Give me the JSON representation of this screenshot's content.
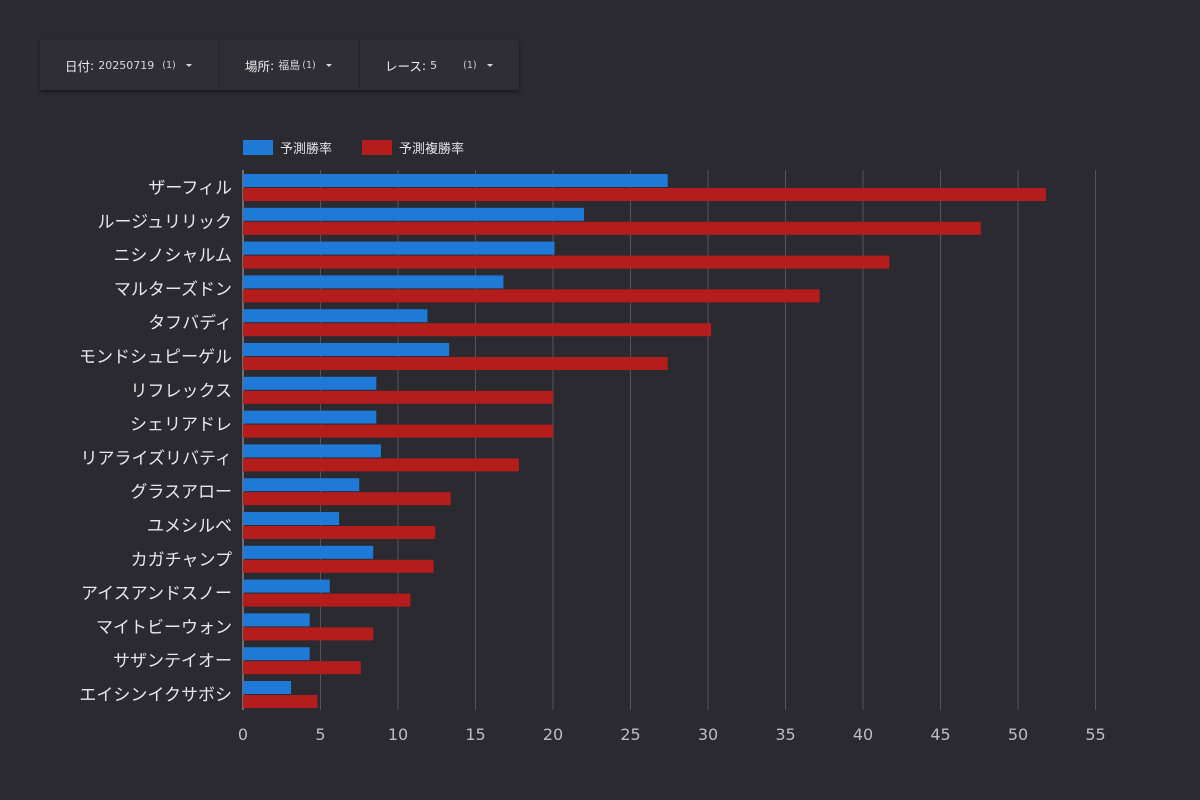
{
  "filters": [
    {
      "label": "日付",
      "value": "20250719",
      "count": "(1)"
    },
    {
      "label": "場所",
      "value": "福島",
      "count": "(1)"
    },
    {
      "label": "レース",
      "value": "5",
      "count": "(1)"
    }
  ],
  "colors": {
    "background": "#2b2a30",
    "win": "#1e7ad6",
    "place": "#b51d1d",
    "grid": "#55545a"
  },
  "chart_data": {
    "type": "bar",
    "orientation": "horizontal",
    "categories": [
      "ザーフィル",
      "ルージュリリック",
      "ニシノシャルム",
      "マルターズドン",
      "タフバディ",
      "モンドシュピーゲル",
      "リフレックス",
      "シェリアドレ",
      "リアライズリバティ",
      "グラスアロー",
      "ユメシルベ",
      "カガチャンプ",
      "アイスアンドスノー",
      "マイトビーウォン",
      "サザンテイオー",
      "エイシンイクサボシ"
    ],
    "series": [
      {
        "name": "予測勝率",
        "color": "#1e7ad6",
        "values": [
          27.4,
          22.0,
          20.1,
          16.8,
          11.9,
          13.3,
          8.6,
          8.6,
          8.9,
          7.5,
          6.2,
          8.4,
          5.6,
          4.3,
          4.3,
          3.1
        ]
      },
      {
        "name": "予測複勝率",
        "color": "#b51d1d",
        "values": [
          51.8,
          47.6,
          41.7,
          37.2,
          30.2,
          27.4,
          20.0,
          20.0,
          17.8,
          13.4,
          12.4,
          12.3,
          10.8,
          8.4,
          7.6,
          4.8
        ]
      }
    ],
    "xlim": [
      0,
      55
    ],
    "xticks": [
      0,
      5,
      10,
      15,
      20,
      25,
      30,
      35,
      40,
      45,
      50,
      55
    ],
    "grid": true,
    "legend_position": "top-left"
  }
}
